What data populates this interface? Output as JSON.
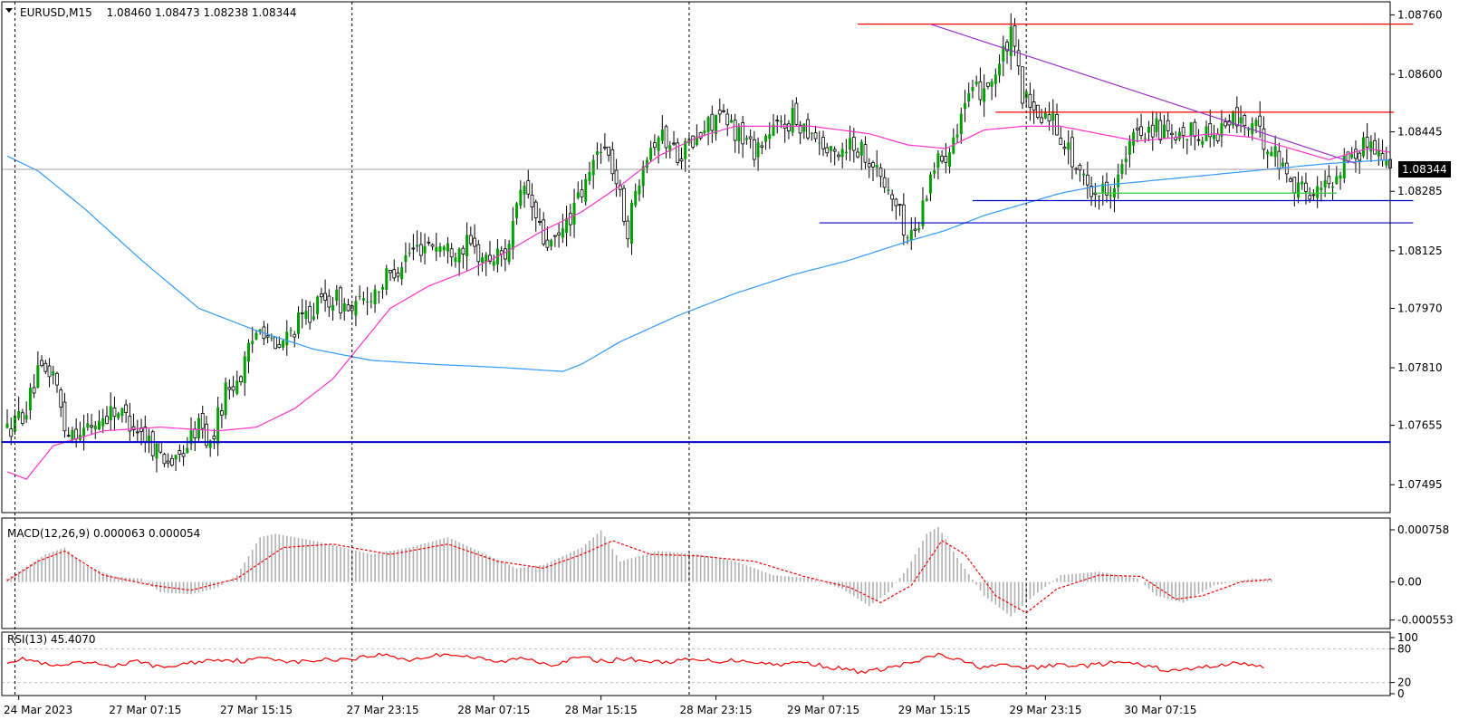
{
  "window": {
    "symbol_label": "EURUSD,M15",
    "ohlc_label": "1.08460 1.08473 1.08238 1.08344"
  },
  "current_price_label": "1.08344",
  "colors": {
    "background": "#ffffff",
    "candle_up": "#00a000",
    "candle_down": "#000000",
    "ma_fast": "#ff33cc",
    "ma_slow": "#3399ff",
    "horizontal_support": "#0000cc",
    "resistance": "#ff0000",
    "trendline": "#9933cc",
    "minor_support": "#33cc33",
    "macd_hist": "#b0b0b0",
    "macd_signal": "#ff0000",
    "rsi": "#ff0000"
  },
  "chart_data": [
    {
      "type": "candlestick",
      "pane": "price",
      "title": "EURUSD,M15",
      "y_ticks": [
        "1.08760",
        "1.08600",
        "1.08445",
        "1.08285",
        "1.08125",
        "1.07970",
        "1.07810",
        "1.07655",
        "1.07495"
      ],
      "ylim": [
        1.0742,
        1.088
      ],
      "x_ticks": [
        "24 Mar 2023",
        "27 Mar 07:15",
        "27 Mar 15:15",
        "27 Mar 23:15",
        "28 Mar 07:15",
        "28 Mar 15:15",
        "28 Mar 23:15",
        "29 Mar 07:15",
        "29 Mar 15:15",
        "29 Mar 23:15",
        "30 Mar 07:15"
      ],
      "session_separators": [
        "24 Mar 2023",
        "27 Mar 23:15",
        "28 Mar 23:15",
        "29 Mar 23:15"
      ],
      "close_anchors": [
        [
          0,
          1.0764
        ],
        [
          5,
          1.077
        ],
        [
          8,
          1.0779
        ],
        [
          12,
          1.078
        ],
        [
          15,
          1.0765
        ],
        [
          20,
          1.0764
        ],
        [
          28,
          1.077
        ],
        [
          33,
          1.0766
        ],
        [
          40,
          1.0758
        ],
        [
          44,
          1.0755
        ],
        [
          50,
          1.0766
        ],
        [
          53,
          1.076
        ],
        [
          57,
          1.0775
        ],
        [
          61,
          1.0779
        ],
        [
          66,
          1.0794
        ],
        [
          70,
          1.0785
        ],
        [
          75,
          1.0792
        ],
        [
          80,
          1.0797
        ],
        [
          85,
          1.08
        ],
        [
          90,
          1.0796
        ],
        [
          95,
          1.0801
        ],
        [
          100,
          1.0806
        ],
        [
          105,
          1.0812
        ],
        [
          110,
          1.0815
        ],
        [
          115,
          1.0813
        ],
        [
          120,
          1.0814
        ],
        [
          125,
          1.081
        ],
        [
          130,
          1.0812
        ],
        [
          135,
          1.083
        ],
        [
          140,
          1.0815
        ],
        [
          143,
          1.0814
        ],
        [
          147,
          1.0822
        ],
        [
          151,
          1.083
        ],
        [
          155,
          1.0842
        ],
        [
          158,
          1.0835
        ],
        [
          162,
          1.0818
        ],
        [
          166,
          1.0838
        ],
        [
          170,
          1.0844
        ],
        [
          175,
          1.0839
        ],
        [
          180,
          1.0842
        ],
        [
          185,
          1.0849
        ],
        [
          190,
          1.0845
        ],
        [
          195,
          1.084
        ],
        [
          200,
          1.0845
        ],
        [
          205,
          1.0848
        ],
        [
          210,
          1.0845
        ],
        [
          215,
          1.0838
        ],
        [
          220,
          1.0842
        ],
        [
          225,
          1.0838
        ],
        [
          228,
          1.0832
        ],
        [
          232,
          1.0825
        ],
        [
          235,
          1.0816
        ],
        [
          238,
          1.082
        ],
        [
          241,
          1.0834
        ],
        [
          245,
          1.0839
        ],
        [
          250,
          1.0852
        ],
        [
          254,
          1.0856
        ],
        [
          258,
          1.086
        ],
        [
          262,
          1.087
        ],
        [
          265,
          1.0855
        ],
        [
          268,
          1.0848
        ],
        [
          272,
          1.085
        ],
        [
          276,
          1.0842
        ],
        [
          280,
          1.0832
        ],
        [
          285,
          1.0828
        ],
        [
          290,
          1.0832
        ],
        [
          295,
          1.0845
        ],
        [
          300,
          1.0846
        ],
        [
          305,
          1.0841
        ],
        [
          310,
          1.0845
        ],
        [
          315,
          1.0844
        ],
        [
          320,
          1.0848
        ],
        [
          325,
          1.0846
        ],
        [
          330,
          1.084
        ],
        [
          335,
          1.0832
        ],
        [
          338,
          1.0829
        ],
        [
          342,
          1.0828
        ],
        [
          346,
          1.0832
        ],
        [
          350,
          1.0838
        ],
        [
          353,
          1.0839
        ],
        [
          356,
          1.0843
        ],
        [
          359,
          1.0838
        ],
        [
          361,
          1.0834
        ]
      ],
      "overlays": {
        "ma_fast_anchors": [
          [
            0,
            1.0753
          ],
          [
            5,
            1.0751
          ],
          [
            12,
            1.076
          ],
          [
            25,
            1.0764
          ],
          [
            40,
            1.0765
          ],
          [
            55,
            1.0764
          ],
          [
            65,
            1.0765
          ],
          [
            75,
            1.077
          ],
          [
            85,
            1.0778
          ],
          [
            100,
            1.0797
          ],
          [
            110,
            1.0803
          ],
          [
            120,
            1.0807
          ],
          [
            130,
            1.0812
          ],
          [
            140,
            1.0818
          ],
          [
            150,
            1.0823
          ],
          [
            160,
            1.083
          ],
          [
            170,
            1.0838
          ],
          [
            180,
            1.0843
          ],
          [
            190,
            1.0846
          ],
          [
            200,
            1.0846
          ],
          [
            210,
            1.0846
          ],
          [
            225,
            1.0844
          ],
          [
            235,
            1.0841
          ],
          [
            245,
            1.084
          ],
          [
            255,
            1.0845
          ],
          [
            265,
            1.0846
          ],
          [
            275,
            1.0846
          ],
          [
            285,
            1.0844
          ],
          [
            295,
            1.0842
          ],
          [
            305,
            1.0843
          ],
          [
            315,
            1.0844
          ],
          [
            325,
            1.0843
          ],
          [
            335,
            1.084
          ],
          [
            345,
            1.0837
          ],
          [
            355,
            1.084
          ],
          [
            361,
            1.0839
          ]
        ],
        "ma_slow_anchors": [
          [
            0,
            1.0838
          ],
          [
            8,
            1.0834
          ],
          [
            20,
            1.0824
          ],
          [
            35,
            1.081
          ],
          [
            50,
            1.0797
          ],
          [
            65,
            1.0791
          ],
          [
            80,
            1.0786
          ],
          [
            95,
            1.0783
          ],
          [
            110,
            1.0782
          ],
          [
            130,
            1.0781
          ],
          [
            145,
            1.078
          ],
          [
            150,
            1.0782
          ],
          [
            160,
            1.0788
          ],
          [
            175,
            1.0795
          ],
          [
            190,
            1.0801
          ],
          [
            205,
            1.0806
          ],
          [
            220,
            1.081
          ],
          [
            235,
            1.0815
          ],
          [
            245,
            1.0818
          ],
          [
            255,
            1.0822
          ],
          [
            265,
            1.0825
          ],
          [
            275,
            1.0828
          ],
          [
            285,
            1.083
          ],
          [
            295,
            1.0831
          ],
          [
            305,
            1.0832
          ],
          [
            315,
            1.0833
          ],
          [
            325,
            1.0834
          ],
          [
            335,
            1.0835
          ],
          [
            345,
            1.0836
          ],
          [
            361,
            1.0837
          ]
        ],
        "horizontal_support": 1.0761,
        "resistance_top": {
          "price": 1.08735,
          "from_bar": 222,
          "to_bar": 367
        },
        "resistance_mid": {
          "price": 1.08498,
          "from_bar": 258,
          "to_bar": 362
        },
        "blue_support_1": {
          "price": 1.0826,
          "from_bar": 252,
          "to_bar": 367
        },
        "blue_support_2": {
          "price": 1.082,
          "from_bar": 212,
          "to_bar": 367
        },
        "minor_support": {
          "price": 1.0828,
          "from_bar": 284,
          "to_bar": 347
        },
        "trendline": {
          "from": [
            241,
            1.08735
          ],
          "to": [
            352,
            1.0836
          ]
        },
        "last_price": 1.08344
      }
    },
    {
      "type": "histogram",
      "pane": "macd",
      "title": "MACD(12,26,9) 0.000063 0.000054",
      "y_ticks": [
        "0.000758",
        "0.00",
        "-0.000553"
      ],
      "ylim": [
        -0.00065,
        0.00085
      ],
      "hist_anchors": [
        [
          0,
          5e-05
        ],
        [
          10,
          0.0004
        ],
        [
          15,
          0.0005
        ],
        [
          20,
          0.00025
        ],
        [
          28,
          8e-05
        ],
        [
          35,
          5e-05
        ],
        [
          40,
          -0.00015
        ],
        [
          48,
          -0.00018
        ],
        [
          55,
          -8e-05
        ],
        [
          60,
          0.0001
        ],
        [
          66,
          0.00065
        ],
        [
          70,
          0.0007
        ],
        [
          80,
          0.0006
        ],
        [
          95,
          0.0004
        ],
        [
          105,
          0.0005
        ],
        [
          115,
          0.00065
        ],
        [
          125,
          0.0004
        ],
        [
          133,
          0.0002
        ],
        [
          140,
          0.00025
        ],
        [
          150,
          0.0005
        ],
        [
          155,
          0.00075
        ],
        [
          160,
          0.0003
        ],
        [
          170,
          0.00045
        ],
        [
          180,
          0.0004
        ],
        [
          190,
          0.0003
        ],
        [
          200,
          0.0001
        ],
        [
          210,
          5e-05
        ],
        [
          218,
          -0.0001
        ],
        [
          225,
          -0.00035
        ],
        [
          230,
          -0.00015
        ],
        [
          235,
          0.0002
        ],
        [
          240,
          0.0007
        ],
        [
          243,
          0.0008
        ],
        [
          248,
          0.00035
        ],
        [
          255,
          -0.0002
        ],
        [
          262,
          -0.0005
        ],
        [
          268,
          -0.0002
        ],
        [
          275,
          0.0001
        ],
        [
          285,
          0.00015
        ],
        [
          295,
          5e-05
        ],
        [
          300,
          -0.0002
        ],
        [
          307,
          -0.0003
        ],
        [
          315,
          -5e-05
        ],
        [
          325,
          5e-05
        ],
        [
          330,
          3e-05
        ]
      ],
      "signal_anchors": [
        [
          0,
          2e-05
        ],
        [
          8,
          0.0003
        ],
        [
          15,
          0.00045
        ],
        [
          25,
          0.0001
        ],
        [
          38,
          -5e-05
        ],
        [
          48,
          -0.00012
        ],
        [
          60,
          5e-05
        ],
        [
          72,
          0.0005
        ],
        [
          85,
          0.00055
        ],
        [
          100,
          0.0004
        ],
        [
          115,
          0.00055
        ],
        [
          128,
          0.0003
        ],
        [
          140,
          0.0002
        ],
        [
          150,
          0.0004
        ],
        [
          158,
          0.0006
        ],
        [
          168,
          0.0004
        ],
        [
          180,
          0.00038
        ],
        [
          195,
          0.0003
        ],
        [
          208,
          8e-05
        ],
        [
          220,
          -8e-05
        ],
        [
          228,
          -0.0003
        ],
        [
          236,
          -5e-05
        ],
        [
          244,
          0.0006
        ],
        [
          250,
          0.0004
        ],
        [
          258,
          -0.0002
        ],
        [
          266,
          -0.00045
        ],
        [
          274,
          -0.0001
        ],
        [
          285,
          0.0001
        ],
        [
          296,
          8e-05
        ],
        [
          305,
          -0.00025
        ],
        [
          312,
          -0.0002
        ],
        [
          322,
          0.0
        ],
        [
          330,
          4e-05
        ]
      ]
    },
    {
      "type": "line",
      "pane": "rsi",
      "title": "RSI(13) 45.4070",
      "y_ticks": [
        "100",
        "80",
        "20",
        "0"
      ],
      "ylim": [
        0,
        100
      ],
      "levels": [
        80,
        20
      ],
      "series": [
        {
          "anchors": [
            [
              0,
              58
            ],
            [
              5,
              62
            ],
            [
              12,
              48
            ],
            [
              20,
              55
            ],
            [
              28,
              50
            ],
            [
              35,
              58
            ],
            [
              40,
              46
            ],
            [
              48,
              55
            ],
            [
              55,
              62
            ],
            [
              62,
              58
            ],
            [
              68,
              65
            ],
            [
              75,
              56
            ],
            [
              82,
              60
            ],
            [
              90,
              63
            ],
            [
              98,
              70
            ],
            [
              105,
              60
            ],
            [
              115,
              72
            ],
            [
              122,
              64
            ],
            [
              128,
              56
            ],
            [
              135,
              64
            ],
            [
              142,
              52
            ],
            [
              150,
              65
            ],
            [
              155,
              58
            ],
            [
              162,
              62
            ],
            [
              170,
              56
            ],
            [
              178,
              60
            ],
            [
              185,
              58
            ],
            [
              192,
              60
            ],
            [
              200,
              52
            ],
            [
              208,
              56
            ],
            [
              216,
              46
            ],
            [
              224,
              38
            ],
            [
              230,
              46
            ],
            [
              238,
              58
            ],
            [
              243,
              70
            ],
            [
              248,
              60
            ],
            [
              254,
              48
            ],
            [
              260,
              50
            ],
            [
              268,
              46
            ],
            [
              275,
              52
            ],
            [
              282,
              50
            ],
            [
              290,
              56
            ],
            [
              297,
              50
            ],
            [
              304,
              40
            ],
            [
              310,
              45
            ],
            [
              317,
              52
            ],
            [
              323,
              55
            ],
            [
              328,
              45
            ]
          ]
        }
      ]
    }
  ]
}
